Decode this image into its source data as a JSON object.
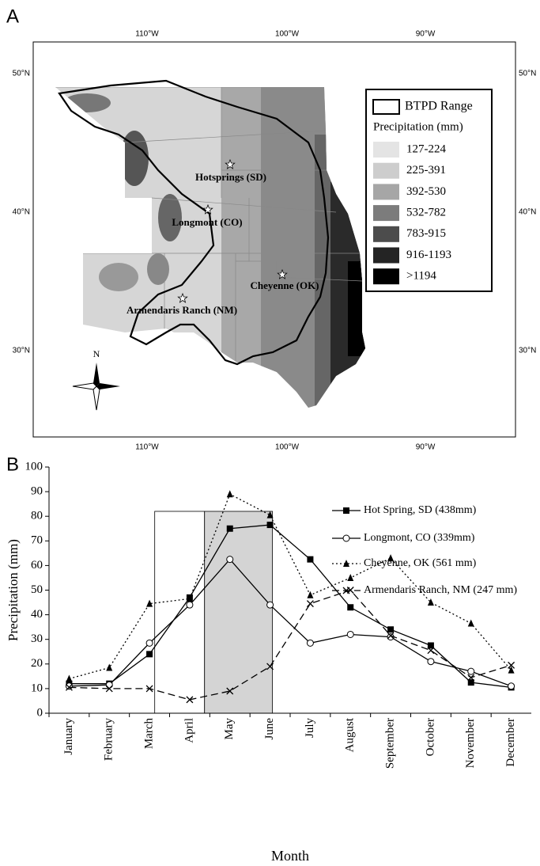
{
  "panel_a": {
    "label": "A",
    "lon_labels": [
      "110°W",
      "100°W",
      "90°W"
    ],
    "lat_labels": [
      "50°N",
      "40°N",
      "30°N"
    ],
    "legend": {
      "range": "BTPD Range",
      "title": "Precipitation (mm)",
      "classes": [
        {
          "label": "127-224",
          "color": "#e4e4e4"
        },
        {
          "label": "225-391",
          "color": "#cdcdcd"
        },
        {
          "label": "392-530",
          "color": "#a6a6a6"
        },
        {
          "label": "532-782",
          "color": "#7c7c7c"
        },
        {
          "label": "783-915",
          "color": "#4c4c4c"
        },
        {
          "label": "916-1193",
          "color": "#242424"
        },
        {
          "label": ">1194",
          "color": "#000000"
        }
      ]
    },
    "sites": [
      "Hotsprings (SD)",
      "Longmont (CO)",
      "Cheyenne (OK)",
      "Armendaris Ranch (NM)"
    ],
    "north": "N"
  },
  "chart_data": {
    "type": "line",
    "panel_label": "B",
    "x_label": "Month",
    "y_label": "Precipitation (mm)",
    "categories": [
      "January",
      "February",
      "March",
      "April",
      "May",
      "June",
      "July",
      "August",
      "September",
      "October",
      "November",
      "December"
    ],
    "ylim": [
      0,
      100
    ],
    "yticks": [
      0,
      10,
      20,
      30,
      40,
      50,
      60,
      70,
      80,
      90,
      100
    ],
    "series": [
      {
        "name": "Hot Spring, SD (438mm)",
        "color": "#000000",
        "marker": "square",
        "line_style": "solid",
        "values": [
          12,
          12,
          24,
          47,
          75,
          76.5,
          62.5,
          43,
          34,
          27.5,
          12.5,
          10.5
        ]
      },
      {
        "name": "Longmont, CO (339mm)",
        "color": "#000000",
        "marker": "circle",
        "line_style": "solid",
        "values": [
          11,
          11.5,
          28.5,
          44,
          62.5,
          44,
          28.5,
          32,
          31,
          21,
          17,
          11
        ]
      },
      {
        "name": "Cheyenne, OK (561 mm)",
        "color": "#000000",
        "marker": "triangle",
        "line_style": "dotted",
        "values": [
          14,
          18.5,
          44.5,
          46.5,
          89,
          80.5,
          48,
          55,
          63,
          45,
          36.5,
          17.5
        ]
      },
      {
        "name": "Armendaris Ranch, NM (247 mm)",
        "color": "#000000",
        "marker": "x",
        "line_style": "dashed",
        "values": [
          10.5,
          10,
          10,
          5.5,
          9,
          19,
          44.5,
          50,
          31.5,
          25.5,
          14.5,
          19.5
        ]
      }
    ]
  }
}
